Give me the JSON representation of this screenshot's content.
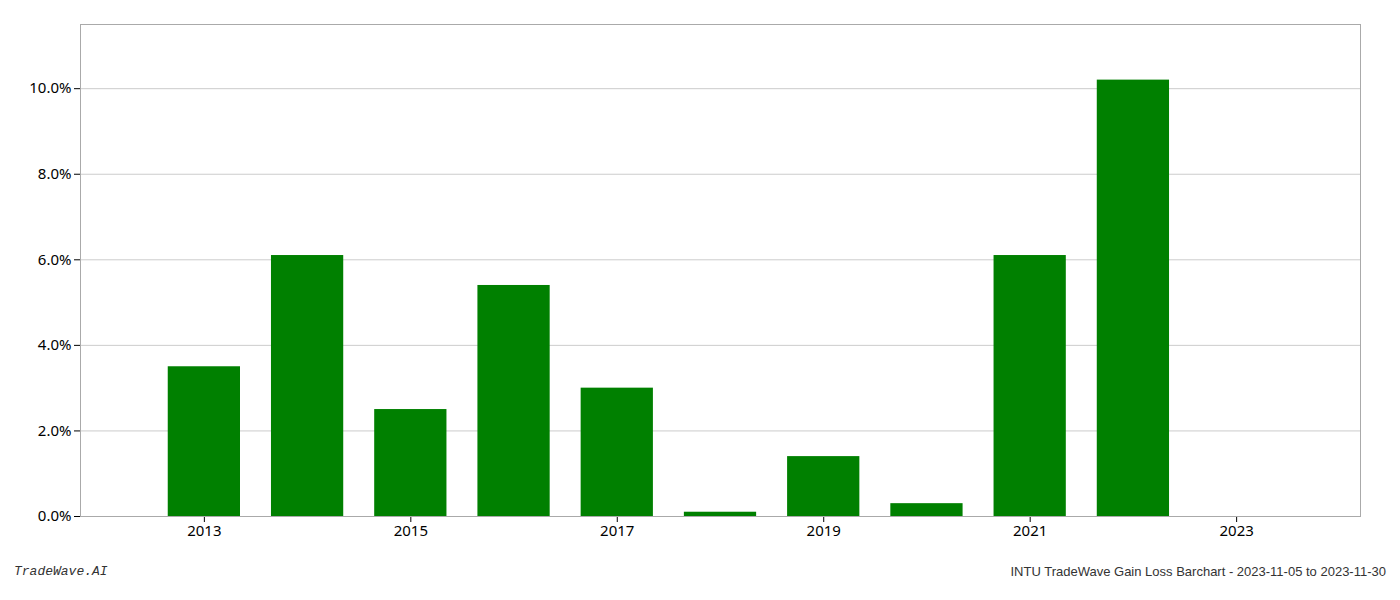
{
  "chart_data": {
    "type": "bar",
    "x": [
      2013,
      2014,
      2015,
      2016,
      2017,
      2018,
      2019,
      2020,
      2021,
      2022,
      2023
    ],
    "values": [
      0.035,
      0.061,
      0.025,
      0.054,
      0.03,
      0.001,
      0.014,
      0.003,
      0.061,
      0.102,
      0.0
    ],
    "color": "#008000",
    "xlim": [
      2011.8,
      2024.2
    ],
    "xticks": [
      2013,
      2015,
      2017,
      2019,
      2021,
      2023
    ],
    "ylim": [
      0,
      0.115
    ],
    "yticks": [
      {
        "value": 0.0,
        "label": "0.0%"
      },
      {
        "value": 0.02,
        "label": "2.0%"
      },
      {
        "value": 0.04,
        "label": "4.0%"
      },
      {
        "value": 0.06,
        "label": "6.0%"
      },
      {
        "value": 0.08,
        "label": "8.0%"
      },
      {
        "value": 0.1,
        "label": "10.0%"
      }
    ],
    "grid": true,
    "annotations": [
      "TradeWave.AI",
      "INTU TradeWave Gain Loss Barchart - 2023-11-05 to 2023-11-30"
    ]
  }
}
